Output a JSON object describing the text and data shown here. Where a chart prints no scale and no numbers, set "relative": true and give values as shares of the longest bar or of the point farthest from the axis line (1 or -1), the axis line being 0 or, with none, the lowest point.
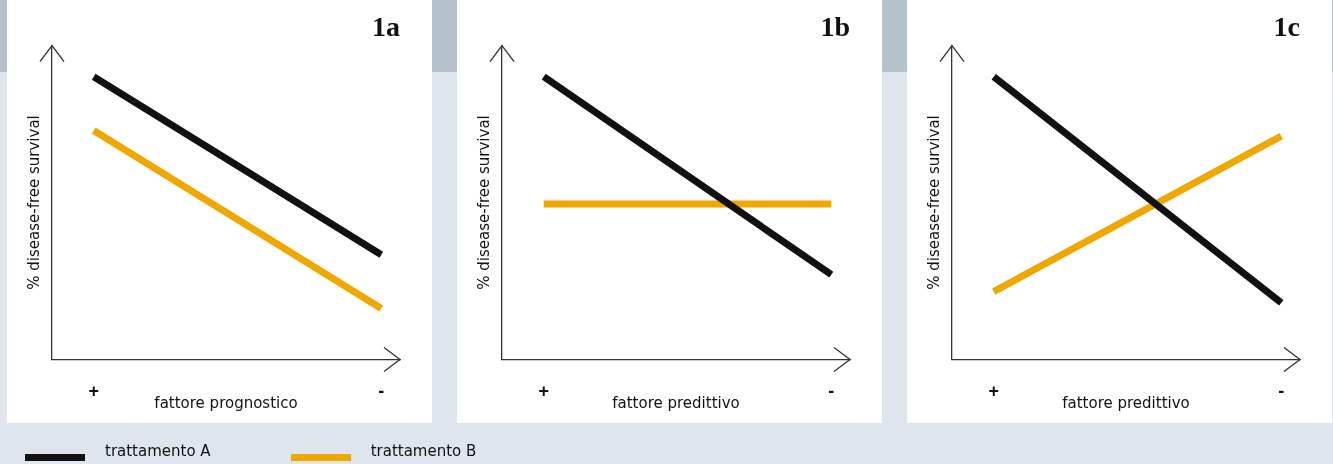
{
  "chart_data": [
    {
      "type": "line",
      "relative": true,
      "title": "1a",
      "xlabel": "fattore prognostico",
      "ylabel": "% disease-free survival",
      "categories": [
        "+",
        "-"
      ],
      "legend": "bottom",
      "marker": "none",
      "series": [
        {
          "name": "trattamento A",
          "color": "#111111",
          "values": [
            1,
            0.37
          ]
        },
        {
          "name": "trattamento B",
          "color": "#f0a800",
          "values": [
            0.81,
            0.18
          ]
        }
      ]
    },
    {
      "type": "line",
      "relative": true,
      "title": "1b",
      "xlabel": "fattore predittivo",
      "ylabel": "% disease-free survival",
      "categories": [
        "+",
        "-"
      ],
      "marker": "none",
      "series": [
        {
          "color": "#111111",
          "values": [
            1,
            0.3
          ]
        },
        {
          "color": "#f0a800",
          "values": [
            0.55,
            0.55
          ]
        }
      ]
    },
    {
      "type": "line",
      "relative": true,
      "title": "1c",
      "xlabel": "fattore predittivo",
      "ylabel": "% disease-free survival",
      "categories": [
        "+",
        "-"
      ],
      "marker": "none",
      "series": [
        {
          "color": "#111111",
          "values": [
            1,
            0.2
          ]
        },
        {
          "color": "#f0a800",
          "values": [
            0.24,
            0.79
          ]
        }
      ]
    }
  ]
}
